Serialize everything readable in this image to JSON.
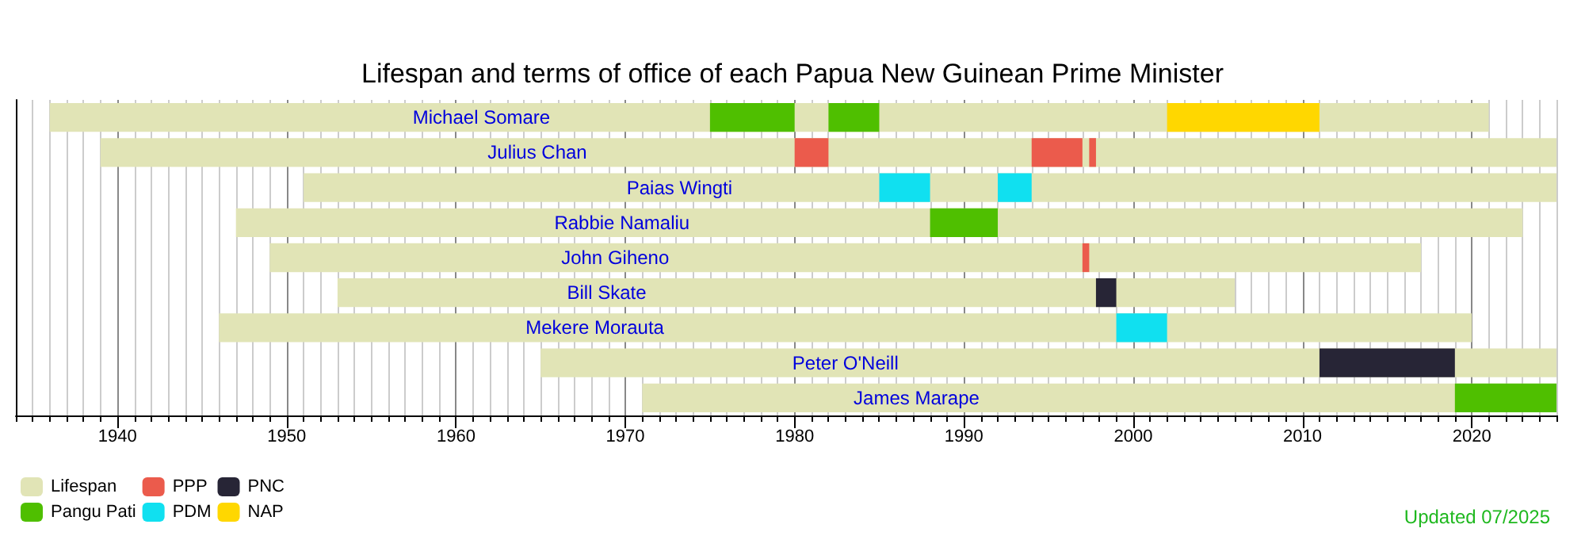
{
  "chart_data": {
    "type": "bar",
    "orientation": "horizontal",
    "title": "Lifespan and terms of office of each Papua New Guinean Prime Minister",
    "categories": [
      "Michael Somare",
      "Julius Chan",
      "Paias Wingti",
      "Rabbie Namaliu",
      "John Giheno",
      "Bill Skate",
      "Mekere Morauta",
      "Peter O'Neill",
      "James Marape"
    ],
    "series": [
      {
        "name": "Lifespan",
        "color": "#e1e4b6",
        "base": [
          1936,
          1939,
          1951,
          1947,
          1949,
          1953,
          1946,
          1965,
          1971
        ],
        "values": [
          85,
          86,
          74,
          76,
          68,
          53,
          74,
          60,
          54
        ]
      },
      {
        "name": "Pangu Pati",
        "color": "#4fbf00",
        "base": [
          1975,
          null,
          null,
          1988,
          null,
          null,
          null,
          null,
          2019
        ],
        "values": [
          5,
          null,
          null,
          4,
          null,
          null,
          null,
          null,
          6
        ]
      },
      {
        "color": "#4fbf00",
        "base": [
          1982,
          null,
          null,
          null,
          null,
          null,
          null,
          null,
          null
        ],
        "values": [
          3,
          null,
          null,
          null,
          null,
          null,
          null,
          null,
          null
        ]
      },
      {
        "name": "PPP",
        "color": "#eb5b4c",
        "base": [
          null,
          1980,
          null,
          null,
          1997,
          null,
          null,
          null,
          null
        ],
        "values": [
          null,
          2,
          null,
          null,
          0.4,
          null,
          null,
          null,
          null
        ]
      },
      {
        "color": "#eb5b4c",
        "base": [
          null,
          1994,
          null,
          null,
          null,
          null,
          null,
          null,
          null
        ],
        "values": [
          null,
          3,
          null,
          null,
          null,
          null,
          null,
          null,
          null
        ]
      },
      {
        "color": "#eb5b4c",
        "base": [
          null,
          1997.4,
          null,
          null,
          null,
          null,
          null,
          null,
          null
        ],
        "values": [
          null,
          0.4,
          null,
          null,
          null,
          null,
          null,
          null,
          null
        ]
      },
      {
        "name": "PDM",
        "color": "#10e0f0",
        "base": [
          null,
          null,
          1985,
          null,
          null,
          null,
          1999,
          null,
          null
        ],
        "values": [
          null,
          null,
          3,
          null,
          null,
          null,
          3,
          null,
          null
        ]
      },
      {
        "color": "#10e0f0",
        "base": [
          null,
          null,
          1992,
          null,
          null,
          null,
          null,
          null,
          null
        ],
        "values": [
          null,
          null,
          2,
          null,
          null,
          null,
          null,
          null,
          null
        ]
      },
      {
        "name": "PNC",
        "color": "#272536",
        "base": [
          null,
          null,
          null,
          null,
          null,
          1997.8,
          null,
          2011,
          null
        ],
        "values": [
          null,
          null,
          null,
          null,
          null,
          1.2,
          null,
          8,
          null
        ]
      },
      {
        "name": "NAP",
        "color": "#ffd700",
        "base": [
          2002,
          null,
          null,
          null,
          null,
          null,
          null,
          null,
          null
        ],
        "values": [
          9,
          null,
          null,
          null,
          null,
          null,
          null,
          null,
          null
        ]
      }
    ],
    "xlim": [
      1934,
      2025
    ],
    "xticks": [
      1940,
      1950,
      1960,
      1970,
      1980,
      1990,
      2000,
      2010,
      2020
    ],
    "tick_labels": "x",
    "grid": "x",
    "legend": "bottom left",
    "annotations": [
      "Updated 07/2025"
    ]
  }
}
